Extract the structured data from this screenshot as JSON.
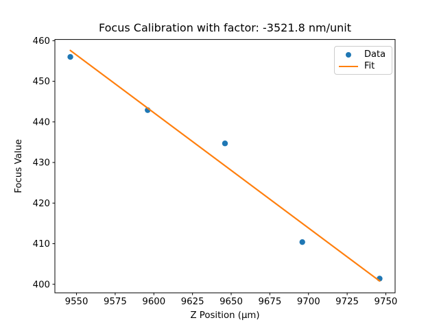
{
  "chart_data": {
    "type": "scatter",
    "title": "Focus Calibration with factor: -3521.8 nm/unit",
    "factor_nm_per_unit": -3521.8,
    "xlabel": "Z Position (μm)",
    "ylabel": "Focus Value",
    "xlim": [
      9536,
      9756
    ],
    "ylim": [
      397.9,
      460.3
    ],
    "xticks": [
      9550,
      9575,
      9600,
      9625,
      9650,
      9675,
      9700,
      9725,
      9750
    ],
    "yticks": [
      400,
      410,
      420,
      430,
      440,
      450,
      460
    ],
    "grid": false,
    "legend": {
      "position": "upper right",
      "entries": [
        {
          "label": "Data",
          "handle": "marker",
          "color": "#1f77b4"
        },
        {
          "label": "Fit",
          "handle": "line",
          "color": "#ff7f0e"
        }
      ]
    },
    "series": [
      {
        "name": "Data",
        "type": "scatter",
        "color": "#1f77b4",
        "marker": "circle",
        "marker_radius": 4.2,
        "points": [
          [
            9546,
            456.0
          ],
          [
            9596,
            442.9
          ],
          [
            9646,
            434.7
          ],
          [
            9696,
            410.4
          ],
          [
            9746,
            401.4
          ]
        ]
      },
      {
        "name": "Fit",
        "type": "line",
        "color": "#ff7f0e",
        "line_width": 2.2,
        "points": [
          [
            9546,
            457.6
          ],
          [
            9746,
            400.8
          ]
        ]
      }
    ]
  },
  "colors": {
    "background": "#ffffff",
    "axis": "#000000",
    "text": "#000000",
    "legend_border": "#cccccc",
    "data_blue": "#1f77b4",
    "fit_orange": "#ff7f0e"
  }
}
